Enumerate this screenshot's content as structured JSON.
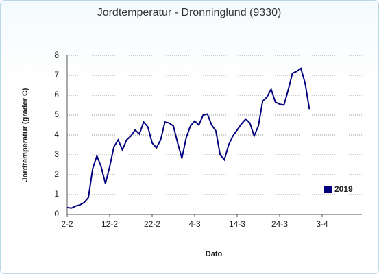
{
  "chart_data": {
    "type": "line",
    "title": "Jordtemperatur - Dronninglund (9330)",
    "xlabel": "Dato",
    "ylabel": "Jordtemperatur (grader C)",
    "categories": [
      "2-2",
      null,
      null,
      null,
      null,
      null,
      null,
      null,
      null,
      null,
      "12-2",
      null,
      null,
      null,
      null,
      null,
      null,
      null,
      null,
      null,
      "22-2",
      null,
      null,
      null,
      null,
      null,
      null,
      null,
      null,
      null,
      "4-3",
      null,
      null,
      null,
      null,
      null,
      null,
      null,
      null,
      null,
      "14-3",
      null,
      null,
      null,
      null,
      null,
      null,
      null,
      null,
      null,
      "24-3",
      null,
      null,
      null,
      null,
      null,
      null,
      null,
      null,
      null,
      "3-4",
      null,
      null,
      null,
      null,
      null,
      null,
      null,
      null,
      null
    ],
    "series": [
      {
        "name": "2019",
        "color": "#00007f",
        "values": [
          0.35,
          0.32,
          0.42,
          0.48,
          0.6,
          0.85,
          2.3,
          2.95,
          2.4,
          1.55,
          2.4,
          3.4,
          3.75,
          3.25,
          3.75,
          3.95,
          4.25,
          4.05,
          4.65,
          4.4,
          3.6,
          3.35,
          3.75,
          4.65,
          4.6,
          4.45,
          3.6,
          2.82,
          3.85,
          4.45,
          4.7,
          4.5,
          5.0,
          5.05,
          4.5,
          4.2,
          3.0,
          2.75,
          3.5,
          3.95,
          4.25,
          4.55,
          4.8,
          4.6,
          3.95,
          4.45,
          5.7,
          5.9,
          6.3,
          5.65,
          5.55,
          5.5,
          6.25,
          7.1,
          7.2,
          7.35,
          6.6,
          5.3,
          null,
          null,
          null,
          null,
          null,
          null,
          null,
          null,
          null,
          null,
          null,
          null
        ]
      }
    ],
    "ylim": [
      0,
      8
    ],
    "yticks": [
      0,
      1,
      2,
      3,
      4,
      5,
      6,
      7,
      8
    ],
    "grid": true,
    "legend": "lower right"
  }
}
